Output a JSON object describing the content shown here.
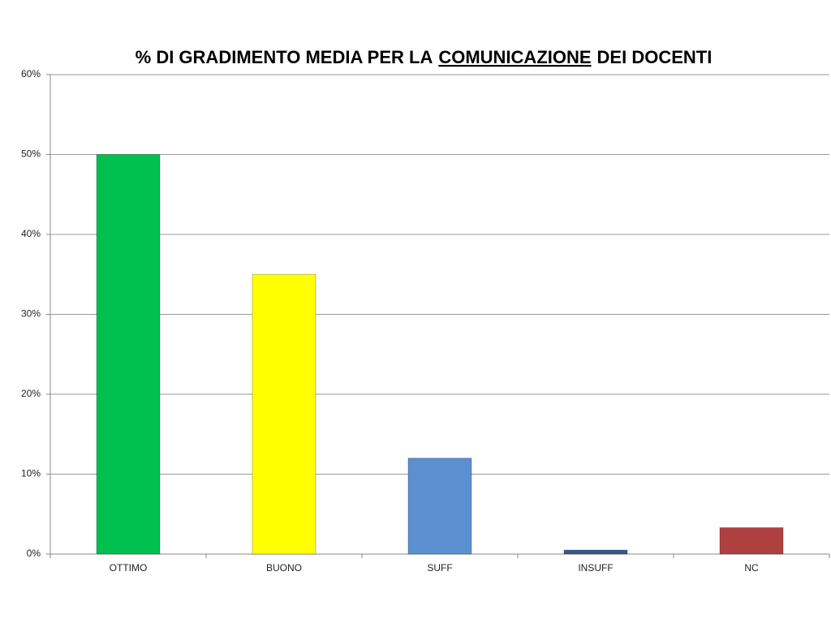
{
  "chart_data": {
    "type": "bar",
    "title": [
      "% DI GRADIMENTO MEDIA PER LA",
      "COMUNICAZIONE",
      "DEI DOCENTI"
    ],
    "categories": [
      "OTTIMO",
      "BUONO",
      "SUFF",
      "INSUFF",
      "NC"
    ],
    "values": [
      50,
      35,
      12,
      0.5,
      3.3
    ],
    "colors": [
      "#00c050",
      "#ffff00",
      "#5b8fd0",
      "#3a5a8c",
      "#b04040"
    ],
    "ylim": [
      0,
      60
    ],
    "yticks": [
      {
        "value": 0,
        "label": "0%"
      },
      {
        "value": 10,
        "label": "10%"
      },
      {
        "value": 20,
        "label": "20%"
      },
      {
        "value": 30,
        "label": "30%"
      },
      {
        "value": 40,
        "label": "40%"
      },
      {
        "value": 50,
        "label": "50%"
      },
      {
        "value": 60,
        "label": "60%"
      }
    ],
    "grid": true
  }
}
